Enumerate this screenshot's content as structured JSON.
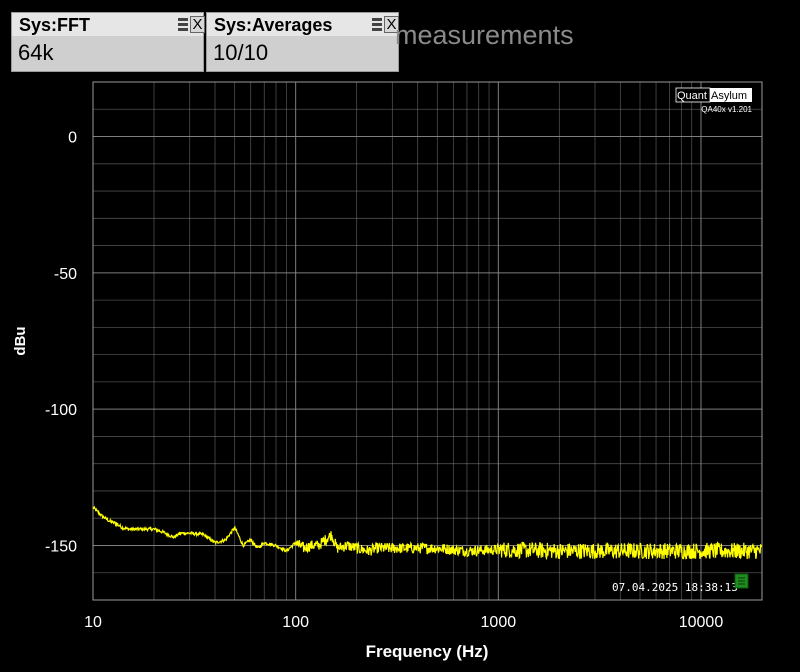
{
  "widgets": [
    {
      "title": "Sys:FFT",
      "value": "64k"
    },
    {
      "title": "Sys:Averages",
      "value": "10/10"
    }
  ],
  "background_text": "measurements",
  "logo": {
    "part1": "Quant",
    "part2": "Asylum",
    "version": "QA40x v1.201"
  },
  "timestamp": "07.04.2025 18:38:13",
  "colors": {
    "trace": "#ffff00",
    "grid": "#8c8c8c",
    "background": "#000000",
    "marker": "#1e8c1e"
  },
  "chart_data": {
    "type": "line",
    "xlabel": "Frequency (Hz)",
    "ylabel": "dBu",
    "x_scale": "log",
    "xlim": [
      10,
      20000
    ],
    "ylim": [
      -170,
      20
    ],
    "x_ticks": [
      10,
      100,
      1000,
      10000
    ],
    "x_tick_labels": [
      "10",
      "100",
      "1000",
      "10000"
    ],
    "y_ticks": [
      0,
      -50,
      -100,
      -150
    ],
    "y_tick_labels": [
      "0",
      "-50",
      "-100",
      "-150"
    ],
    "grid": true,
    "series": [
      {
        "values_description_free": true,
        "x": [
          10,
          11,
          12,
          13,
          14,
          15,
          17,
          20,
          22,
          25,
          27,
          30,
          35,
          40,
          45,
          50,
          52,
          55,
          60,
          65,
          70,
          80,
          90,
          100,
          110,
          120,
          130,
          150,
          160,
          180,
          200,
          230,
          250,
          300,
          400,
          500,
          700,
          1000,
          2000,
          3000,
          5000,
          7000,
          10000,
          14000,
          16000,
          18000,
          20000
        ],
        "y": [
          -136,
          -139,
          -141,
          -142,
          -143.5,
          -144,
          -144,
          -144,
          -145,
          -147,
          -145.5,
          -145.5,
          -146,
          -149,
          -148,
          -143.5,
          -146,
          -150,
          -148,
          -151,
          -149,
          -150,
          -152,
          -149,
          -151,
          -150,
          -150,
          -146,
          -151,
          -150,
          -151,
          -152,
          -151,
          -151,
          -151,
          -151,
          -152,
          -151.5,
          -152,
          -152,
          -152,
          -152,
          -152,
          -152,
          -152,
          -152,
          -152
        ]
      }
    ]
  }
}
